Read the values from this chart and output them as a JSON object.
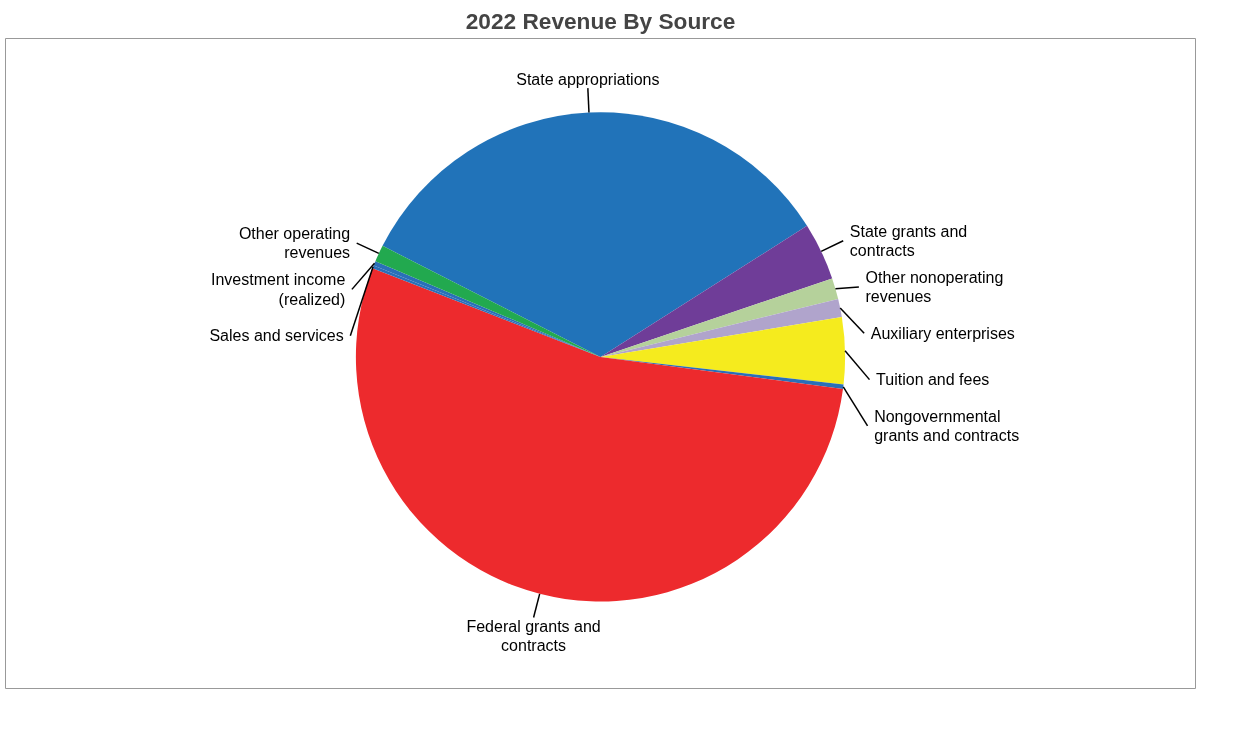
{
  "chart_data": {
    "type": "pie",
    "title": "2022 Revenue By Source",
    "categories": [
      "State appropriations",
      "State grants and contracts",
      "Other nonoperating revenues",
      "Auxiliary enterprises",
      "Tuition and fees",
      "Nongovernmental grants and contracts",
      "Federal grants and contracts",
      "Sales and services",
      "Investment income (realized)",
      "Other operating revenues"
    ],
    "values": [
      33.5,
      3.8,
      1.4,
      1.2,
      4.4,
      0.3,
      53.8,
      0.2,
      0.3,
      1.1
    ],
    "colors": [
      "#2173b9",
      "#6f3d98",
      "#b5d19b",
      "#b0a4cc",
      "#f5eb1e",
      "#2a6fb8",
      "#ed2a2d",
      "#2a6fb8",
      "#2a6fb8",
      "#22a94f"
    ]
  }
}
